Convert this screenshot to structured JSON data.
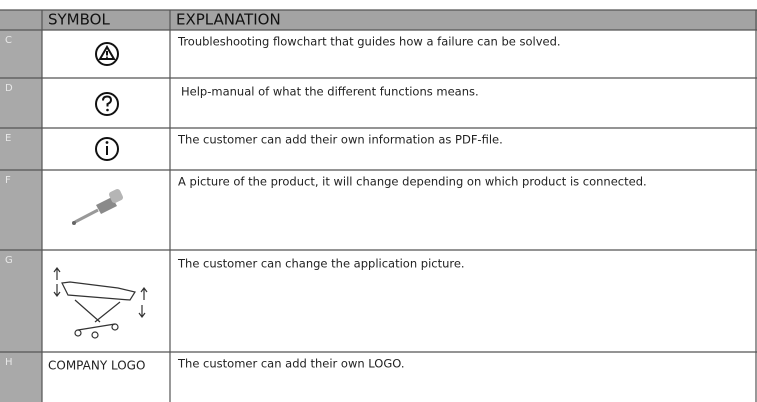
{
  "table": {
    "header": [
      "SYMBOL",
      "EXPLANATION"
    ],
    "rows": [
      {
        "key": "C",
        "explanation": "Troubleshooting flowchart that guides how a failure can be solved."
      },
      {
        "key": "D",
        "explanation": "Help-manual of what the different functions means."
      },
      {
        "key": "E",
        "explanation": "The customer can add their own information as PDF-file."
      },
      {
        "key": "F",
        "explanation": "A picture of the product, it will change depending on which product is connected."
      },
      {
        "key": "G",
        "explanation": "The customer can change the application picture."
      },
      {
        "key": "H",
        "symbol": "COMPANY LOGO",
        "explanation": "The customer can add their own LOGO."
      }
    ]
  }
}
